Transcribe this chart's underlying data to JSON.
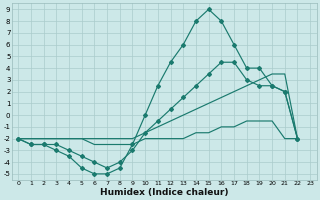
{
  "bg_color": "#cce8e8",
  "grid_color": "#aacccc",
  "line_color": "#1a7a6e",
  "xlabel": "Humidex (Indice chaleur)",
  "xlim": [
    -0.5,
    23.5
  ],
  "ylim": [
    -5.5,
    9.5
  ],
  "xticks": [
    0,
    1,
    2,
    3,
    4,
    5,
    6,
    7,
    8,
    9,
    10,
    11,
    12,
    13,
    14,
    15,
    16,
    17,
    18,
    19,
    20,
    21,
    22,
    23
  ],
  "yticks": [
    -5,
    -4,
    -3,
    -2,
    -1,
    0,
    1,
    2,
    3,
    4,
    5,
    6,
    7,
    8,
    9
  ],
  "line1_x": [
    0,
    1,
    2,
    3,
    4,
    5,
    6,
    7,
    8,
    9,
    10,
    11,
    12,
    13,
    14,
    15,
    16,
    17,
    18,
    19,
    20,
    21,
    22
  ],
  "line1_y": [
    -2,
    -2.5,
    -2.5,
    -3,
    -3.5,
    -4.5,
    -5,
    -5,
    -4.5,
    -2.5,
    0,
    2.5,
    4.5,
    6,
    8,
    9,
    8,
    6,
    4,
    4,
    2.5,
    2,
    -2
  ],
  "line2_x": [
    0,
    1,
    2,
    3,
    4,
    5,
    6,
    7,
    8,
    9,
    10,
    11,
    12,
    13,
    14,
    15,
    16,
    17,
    18,
    19,
    20,
    21,
    22
  ],
  "line2_y": [
    -2,
    -2.5,
    -2.5,
    -2.5,
    -3,
    -3.5,
    -4,
    -4.5,
    -4,
    -3,
    -1.5,
    -0.5,
    0.5,
    1.5,
    2.5,
    3.5,
    4.5,
    4.5,
    3,
    2.5,
    2.5,
    2,
    -2
  ],
  "line3_x": [
    0,
    1,
    2,
    3,
    4,
    5,
    6,
    7,
    8,
    9,
    10,
    11,
    12,
    13,
    14,
    15,
    16,
    17,
    18,
    19,
    20,
    21,
    22
  ],
  "line3_y": [
    -2,
    -2,
    -2,
    -2,
    -2,
    -2,
    -2.5,
    -2.5,
    -2.5,
    -2.5,
    -2,
    -2,
    -2,
    -2,
    -1.5,
    -1.5,
    -1,
    -1,
    -0.5,
    -0.5,
    -0.5,
    -2,
    -2
  ],
  "line4_x": [
    0,
    9,
    10,
    11,
    12,
    13,
    14,
    15,
    16,
    17,
    18,
    19,
    20,
    21,
    22
  ],
  "line4_y": [
    -2,
    -2,
    -1.5,
    -1,
    -0.5,
    0,
    0.5,
    1,
    1.5,
    2,
    2.5,
    3,
    3.5,
    3.5,
    -2
  ]
}
